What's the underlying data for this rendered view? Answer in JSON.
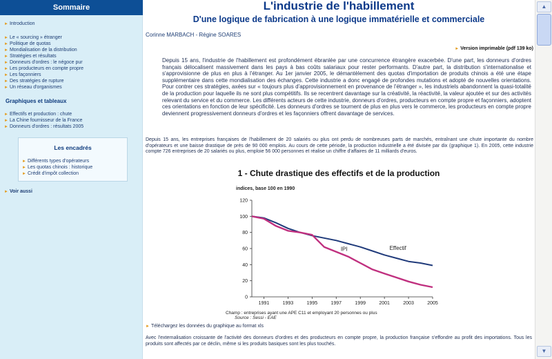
{
  "sidebar": {
    "header": "Sommaire",
    "items": [
      {
        "label": "Introduction"
      },
      {
        "label": "Le « sourcing » étranger"
      },
      {
        "label": "Politique de quotas"
      },
      {
        "label": "Mondialisation de la distribution"
      },
      {
        "label": "Stratégies et résultats"
      },
      {
        "label": "Donneurs d'ordres : le négoce pur"
      },
      {
        "label": "Les producteurs en compte propre"
      },
      {
        "label": "Les façonniers"
      },
      {
        "label": "Des stratégies de rupture"
      },
      {
        "label": "Un réseau d'organismes"
      }
    ],
    "graphs_title": "Graphiques et tableaux",
    "graphs": [
      {
        "label": "Effectifs et production : chute"
      },
      {
        "label": "La Chine fournisseur de la France"
      },
      {
        "label": "Donneurs d'ordres : résultats 2005"
      }
    ],
    "encadres_title": "Les encadrés",
    "encadres": [
      {
        "label": "Différents types d'opérateurs"
      },
      {
        "label": "Les quotas chinois : historique"
      },
      {
        "label": "Crédit d'impôt collection"
      }
    ],
    "see_also": "Voir aussi"
  },
  "main": {
    "title": "L'industrie de l'habillement",
    "subtitle": "D'une logique de fabrication à une logique immatérielle et commerciale",
    "authors": "Corinne MARBACH - Régine SOARES",
    "printable": "Version imprimable (pdf 139 ko)",
    "intro": "Depuis 15 ans, l'industrie de l'habillement est profondément ébranlée par une concurrence étrangère exacerbée. D'une part, les donneurs d'ordres français délocalisent massivement dans les pays à bas coûts salariaux pour rester performants. D'autre part, la distribution s'internationalise et s'approvisionne de plus en plus à l'étranger. Au 1er janvier 2005, le démantèlement des quotas d'importation de produits chinois a été une étape supplémentaire dans cette mondialisation des échanges. Cette industrie a donc engagé de profondes mutations et adopté de nouvelles orientations. Pour contrer ces stratégies, axées sur « toujours plus d'approvisionnement en provenance de l'étranger », les industriels abandonnent la quasi-totalité de la production pour laquelle ils ne sont plus compétitifs. Ils se recentrent davantage sur la créativité, la réactivité, la valeur ajoutée et sur des activités relevant du service et du commerce. Les différents acteurs de cette industrie, donneurs d'ordres, producteurs en compte propre et façonniers, adoptent ces orientations en fonction de leur spécificité. Les donneurs d'ordres se tournent de plus en plus vers le commerce, les producteurs en compte propre deviennent progressivement donneurs d'ordres et les façonniers offrent davantage de services.",
    "body1": "Depuis 15 ans, les entreprises françaises de l'habillement de 20 salariés ou plus ont perdu de nombreuses parts de marchés, entraînant une chute importante du nombre d'opérateurs et une baisse drastique de près de 90 000 emplois. Au cours de cette période, la production industrielle a été divisée par dix (graphique 1). En 2005, cette industrie compte 726 entreprises de 20 salariés ou plus, emploie 56 000 personnes et réalise un chiffre d'affaires de 11 milliards d'euros.",
    "chart_title": "1 - Chute drastique des effectifs et de la production",
    "chart_note": "Champ : entreprises ayant une APE C11 et employant 20 personnes ou plus",
    "chart_source": "Source : Sessi - EAE",
    "download": "Téléchargez les données du graphique au format xls",
    "body2": "Avec l'externalisation croissante de l'activité des donneurs d'ordres et des producteurs en compte propre, la production française s'effondre au profit des importations. Tous les produits sont affectés par ce déclin, même si les produits basiques sont les plus touchés."
  },
  "colors": {
    "sidebar_bg": "#d9eef7",
    "sidebar_header": "#0d4f96",
    "title": "#0d3a8a",
    "effectif_line": "#1f3a7a",
    "ipi_line": "#c0307f",
    "bullet": "#e39a1a"
  },
  "chart_data": {
    "type": "line",
    "subtitle": "indices, base 100 en 1990",
    "x": [
      1990,
      1991,
      1992,
      1993,
      1994,
      1995,
      1996,
      1997,
      1998,
      1999,
      2000,
      2001,
      2002,
      2003,
      2004,
      2005
    ],
    "xticks": [
      "1991",
      "1993",
      "1995",
      "1997",
      "1999",
      "2001",
      "2003",
      "2005"
    ],
    "ylim": [
      0,
      120
    ],
    "yticks": [
      "0",
      "20",
      "40",
      "60",
      "80",
      "100",
      "120"
    ],
    "series": [
      {
        "name": "Effectif",
        "values": [
          100,
          98,
          92,
          85,
          80,
          76,
          73,
          70,
          66,
          62,
          57,
          52,
          48,
          44,
          42,
          39
        ]
      },
      {
        "name": "IPI",
        "values": [
          100,
          97,
          88,
          82,
          80,
          77,
          62,
          56,
          50,
          42,
          34,
          29,
          24,
          19,
          15,
          12
        ]
      }
    ],
    "grid": false
  }
}
